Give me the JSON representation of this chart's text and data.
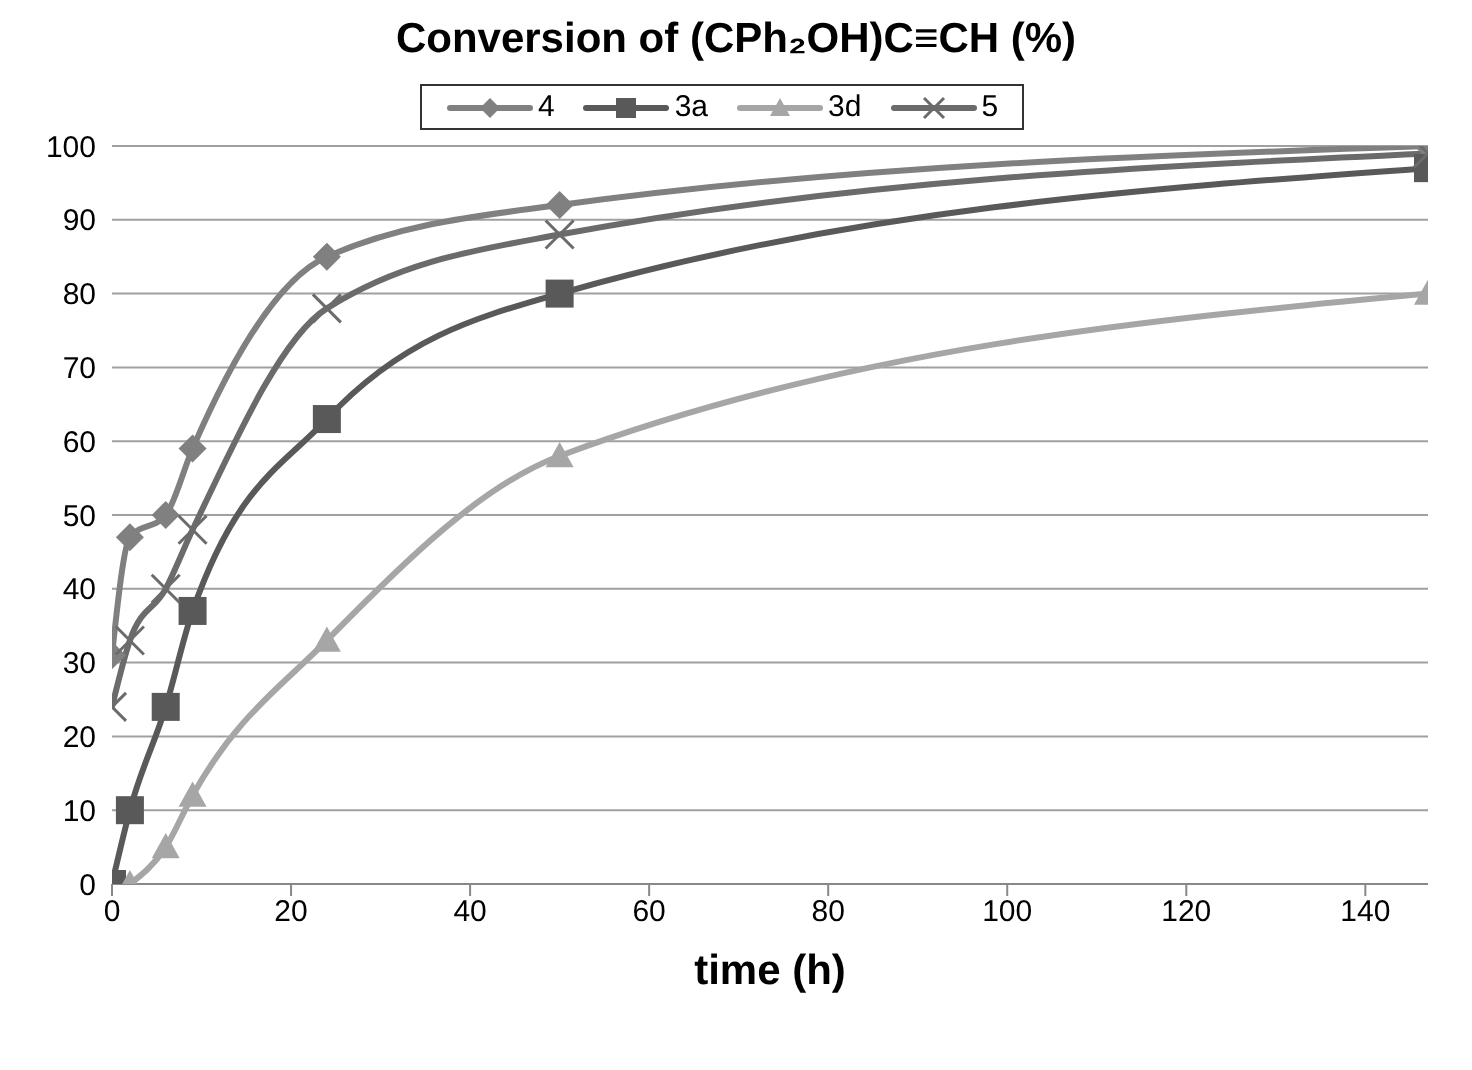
{
  "chart_data": {
    "type": "line",
    "title": "Conversion of (CPh₂OH)C≡CH (%)",
    "xlabel": "time (h)",
    "series": [
      {
        "name": "4",
        "color": "#808080",
        "marker": "diamond",
        "x": [
          0,
          2,
          6,
          9,
          24,
          50,
          147
        ],
        "values": [
          31,
          47,
          50,
          59,
          85,
          92,
          100
        ]
      },
      {
        "name": "3a",
        "color": "#595959",
        "marker": "square",
        "x": [
          0,
          2,
          6,
          9,
          24,
          50,
          147
        ],
        "values": [
          0,
          10,
          24,
          37,
          63,
          80,
          97
        ]
      },
      {
        "name": "3d",
        "color": "#a6a6a6",
        "marker": "triangle",
        "x": [
          2,
          6,
          9,
          24,
          50,
          147
        ],
        "values": [
          0,
          5,
          12,
          33,
          58,
          80
        ]
      },
      {
        "name": "5",
        "color": "#6b6b6b",
        "marker": "cross",
        "x": [
          0,
          2,
          6,
          9,
          24,
          50,
          147
        ],
        "values": [
          24,
          33,
          40,
          48,
          78,
          88,
          99
        ]
      }
    ],
    "xlim": [
      0,
      147
    ],
    "xticks": [
      0,
      20,
      40,
      60,
      80,
      100,
      120,
      140
    ],
    "ylim": [
      0,
      100
    ],
    "yticks": [
      0,
      10,
      20,
      30,
      40,
      50,
      60,
      70,
      80,
      90,
      100
    ],
    "grid": "y",
    "legend": "top",
    "line_style": "solid"
  }
}
